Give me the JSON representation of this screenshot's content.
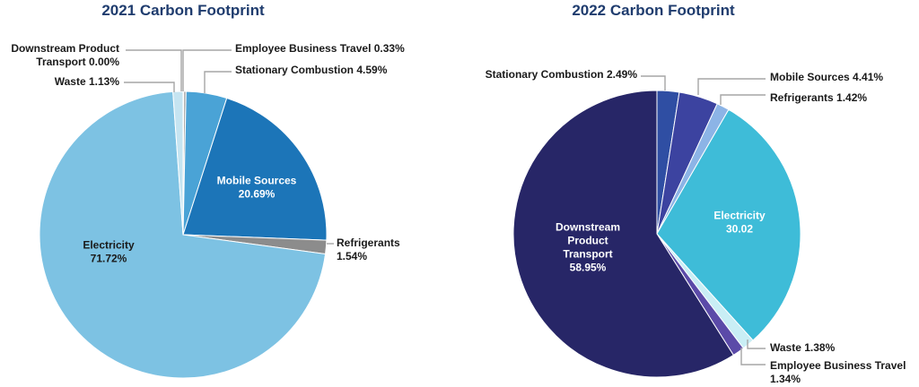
{
  "chart_data": [
    {
      "type": "pie",
      "title": "2021 Carbon Footprint",
      "slices": [
        {
          "name": "Employee Business Travel",
          "label_lines": [
            "Employee Business Travel 0.33%"
          ],
          "value": 0.33,
          "color": "#a6a6a6"
        },
        {
          "name": "Stationary Combustion",
          "label_lines": [
            "Stationary Combustion 4.59%"
          ],
          "value": 4.59,
          "color": "#4aa3d6"
        },
        {
          "name": "Mobile Sources",
          "label_lines": [
            "Mobile Sources",
            "20.69%"
          ],
          "value": 20.69,
          "color": "#1c75b8"
        },
        {
          "name": "Refrigerants",
          "label_lines": [
            "Refrigerants",
            "1.54%"
          ],
          "value": 1.54,
          "color": "#8c8c8c"
        },
        {
          "name": "Electricity",
          "label_lines": [
            "Electricity",
            "71.72%"
          ],
          "value": 71.72,
          "color": "#7dc2e3"
        },
        {
          "name": "Waste",
          "label_lines": [
            "Waste 1.13%"
          ],
          "value": 1.13,
          "color": "#c5e4f1"
        },
        {
          "name": "Downstream Product Transport",
          "label_lines": [
            "Downstream Product",
            "Transport 0.00%"
          ],
          "value": 0.0,
          "color": "#6b6b6b"
        }
      ]
    },
    {
      "type": "pie",
      "title": "2022 Carbon Footprint",
      "slices": [
        {
          "name": "Stationary Combustion",
          "label_lines": [
            "Stationary Combustion 2.49%"
          ],
          "value": 2.49,
          "color": "#2f4ea3"
        },
        {
          "name": "Mobile Sources",
          "label_lines": [
            "Mobile Sources 4.41%"
          ],
          "value": 4.41,
          "color": "#3c43a0"
        },
        {
          "name": "Refrigerants",
          "label_lines": [
            "Refrigerants 1.42%"
          ],
          "value": 1.42,
          "color": "#8cb4e6"
        },
        {
          "name": "Electricity",
          "label_lines": [
            "Electricity",
            "30.02"
          ],
          "value": 30.02,
          "color": "#3ebcd8"
        },
        {
          "name": "Waste",
          "label_lines": [
            "Waste 1.38%"
          ],
          "value": 1.38,
          "color": "#c9eef5"
        },
        {
          "name": "Employee Business Travel",
          "label_lines": [
            "Employee Business Travel",
            "1.34%"
          ],
          "value": 1.34,
          "color": "#5b4aa8"
        },
        {
          "name": "Downstream Product Transport",
          "label_lines": [
            "Downstream",
            "Product",
            "Transport",
            "58.95%"
          ],
          "value": 58.95,
          "color": "#272667"
        }
      ]
    }
  ]
}
